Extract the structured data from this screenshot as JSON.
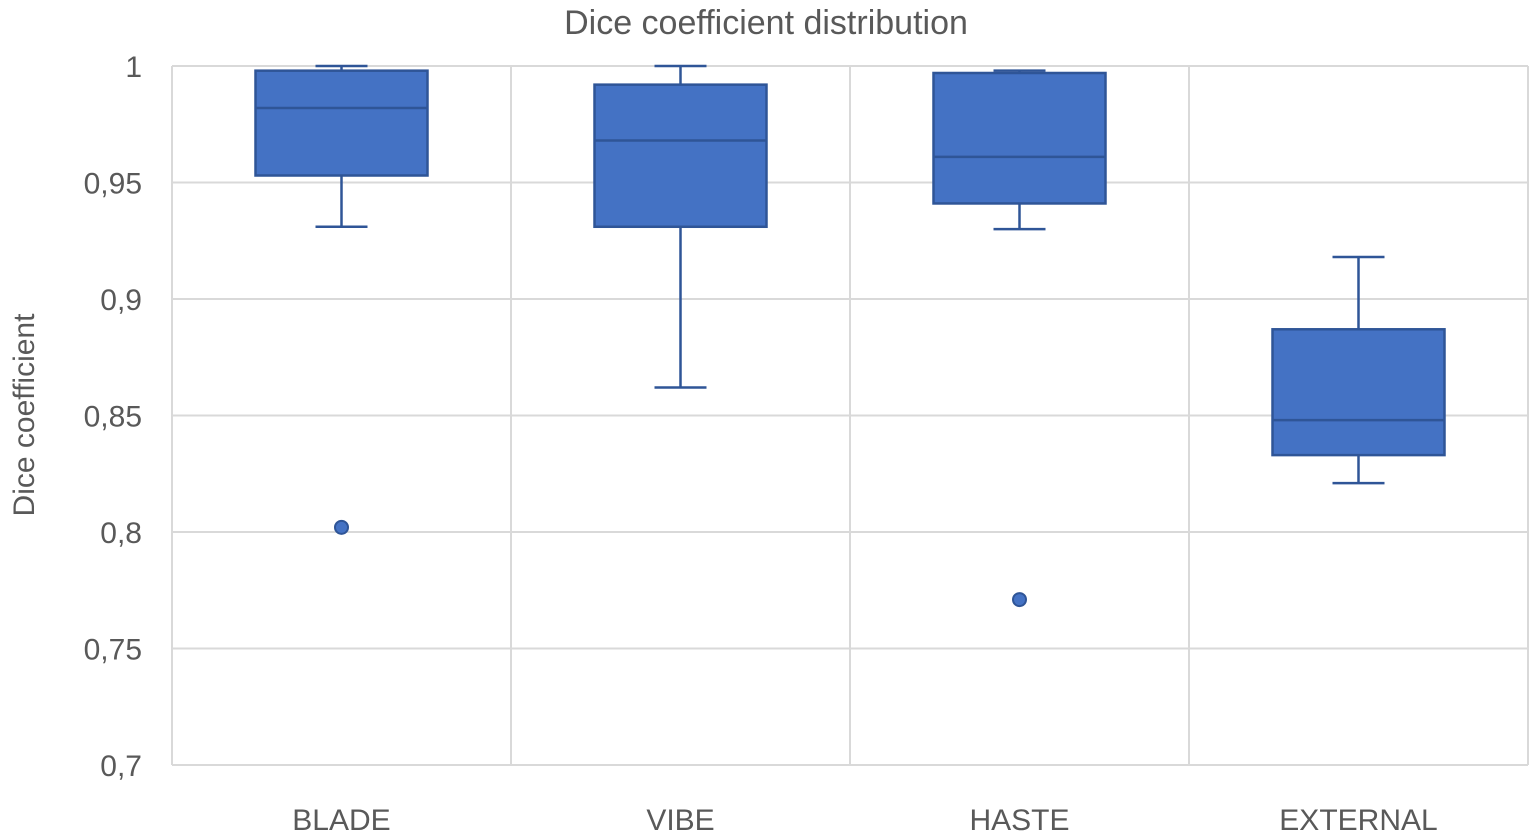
{
  "chart_data": {
    "type": "boxplot",
    "title": "Dice coefficient distribution",
    "xlabel": "",
    "ylabel": "Dice coefficient",
    "ylim": [
      0.7,
      1.0
    ],
    "yticks": [
      {
        "value": 1.0,
        "label": "1"
      },
      {
        "value": 0.95,
        "label": "0,95"
      },
      {
        "value": 0.9,
        "label": "0,9"
      },
      {
        "value": 0.85,
        "label": "0,85"
      },
      {
        "value": 0.8,
        "label": "0,8"
      },
      {
        "value": 0.75,
        "label": "0,75"
      },
      {
        "value": 0.7,
        "label": "0,7"
      }
    ],
    "grid": true,
    "legend": "none",
    "colors": {
      "box_fill": "#4472c4",
      "box_edge": "#2f5597",
      "grid": "#d9d9d9",
      "text": "#595959"
    },
    "categories": [
      "BLADE",
      "VIBE",
      "HASTE",
      "EXTERNAL"
    ],
    "series": [
      {
        "name": "BLADE",
        "whisker_low": 0.931,
        "q1": 0.953,
        "median": 0.982,
        "q3": 0.998,
        "whisker_high": 1.0,
        "outliers": [
          0.802
        ]
      },
      {
        "name": "VIBE",
        "whisker_low": 0.862,
        "q1": 0.931,
        "median": 0.968,
        "q3": 0.992,
        "whisker_high": 1.0,
        "outliers": []
      },
      {
        "name": "HASTE",
        "whisker_low": 0.93,
        "q1": 0.941,
        "median": 0.961,
        "q3": 0.997,
        "whisker_high": 0.998,
        "outliers": [
          0.771
        ]
      },
      {
        "name": "EXTERNAL",
        "whisker_low": 0.821,
        "q1": 0.833,
        "median": 0.848,
        "q3": 0.887,
        "whisker_high": 0.918,
        "outliers": []
      }
    ]
  }
}
